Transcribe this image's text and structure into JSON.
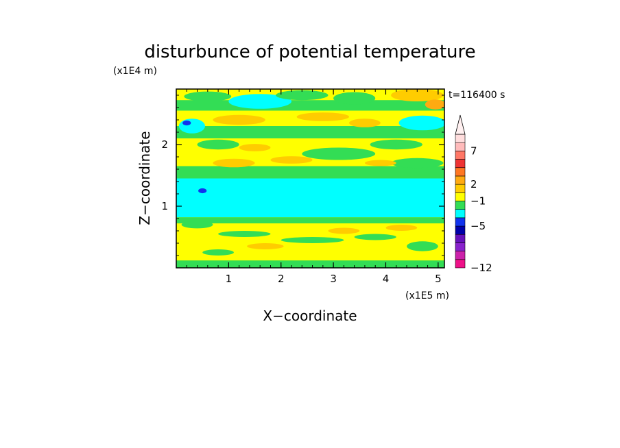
{
  "chart_data": {
    "type": "heatmap",
    "title": "disturbunce of potential temperature",
    "xlabel": "X−coordinate",
    "ylabel": "Z−coordinate",
    "x_unit": "(x1E5 m)",
    "y_unit": "(x1E4 m)",
    "time_label": "t=116400 s",
    "xlim": [
      0,
      5.12
    ],
    "ylim": [
      0,
      2.9
    ],
    "x_ticks": [
      "1",
      "2",
      "3",
      "4",
      "5"
    ],
    "y_ticks": [
      "1",
      "2"
    ],
    "colorbar": {
      "tick_labels": [
        "7",
        "2",
        "−1",
        "−5",
        "−12"
      ],
      "colors_bottom_to_top": [
        "#ee1188",
        "#cc22aa",
        "#8822cc",
        "#6611bb",
        "#0000aa",
        "#1133ee",
        "#00ffff",
        "#33dd55",
        "#ffff00",
        "#ffcc00",
        "#ffaa11",
        "#ff7722",
        "#ee3333",
        "#ff7766",
        "#ffbbbb",
        "#ffdddd"
      ],
      "extend_top": true
    },
    "rows_z": [
      0.05,
      0.2,
      0.4,
      0.55,
      0.75,
      0.9,
      1.0,
      1.15,
      1.3,
      1.5,
      1.7,
      1.9,
      2.1,
      2.3,
      2.5,
      2.7,
      2.85
    ],
    "dominant_values_by_row": [
      "0 (green)",
      "1 (yellow)",
      "1 to 2 (yellow/orange)",
      "1 (yellow)",
      "0 (green)",
      "−1 (cyan)",
      "−1 (cyan)",
      "−1 (cyan)",
      "0 (green)",
      "1 (yellow)",
      "2 (orange)",
      "1 (yellow)",
      "0 (green)",
      "1 to 2 (yellow/orange)",
      "0 (green)",
      "−1 to 0 (cyan/green)",
      "1 to 3 (yellow/orange)"
    ]
  }
}
